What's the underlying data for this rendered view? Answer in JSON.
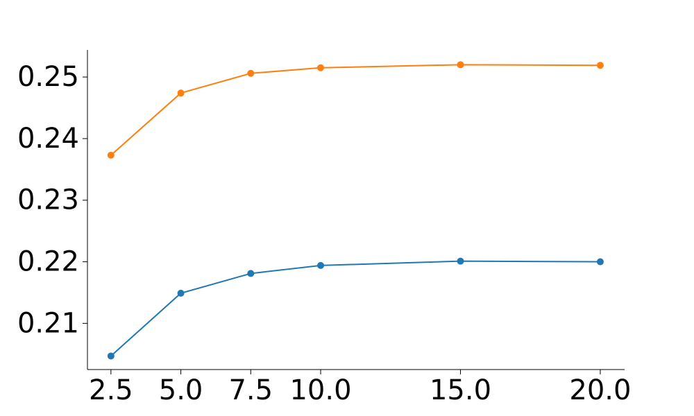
{
  "chart_data": {
    "type": "line",
    "x": [
      2.5,
      5,
      7.5,
      10,
      15,
      20
    ],
    "series": [
      {
        "color": "#1f77b4",
        "values": [
          0.2047,
          0.2149,
          0.2181,
          0.2194,
          0.2201,
          0.22
        ]
      },
      {
        "color": "#ff7f0e",
        "values": [
          0.2373,
          0.2474,
          0.2506,
          0.2515,
          0.252,
          0.2519
        ]
      }
    ],
    "xlim": [
      1.66,
      20.87
    ],
    "ylim": [
      0.2025,
      0.2544
    ],
    "xticks": [
      {
        "value": 2.5,
        "label": "2.5"
      },
      {
        "value": 5,
        "label": "5.0"
      },
      {
        "value": 7.5,
        "label": "7.5"
      },
      {
        "value": 10,
        "label": "10.0"
      },
      {
        "value": 15,
        "label": "15.0"
      },
      {
        "value": 20,
        "label": "20.0"
      }
    ],
    "yticks": [
      0.21,
      0.22,
      0.23,
      0.24,
      0.25
    ],
    "grid": false
  }
}
